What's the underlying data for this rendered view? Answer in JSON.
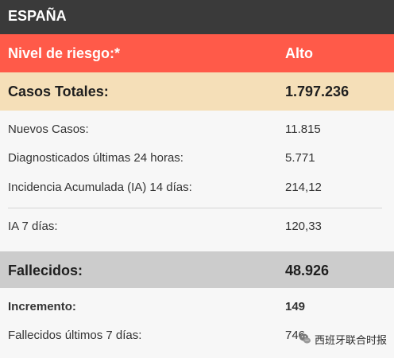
{
  "header": {
    "title": "ESPAÑA"
  },
  "risk": {
    "label": "Nivel de riesgo:*",
    "value": "Alto"
  },
  "total_cases": {
    "label": "Casos Totales:",
    "value": "1.797.236"
  },
  "cases_details": [
    {
      "label": "Nuevos Casos:",
      "value": "11.815"
    },
    {
      "label": "Diagnosticados últimas 24 horas:",
      "value": "5.771"
    },
    {
      "label": "Incidencia Acumulada (IA) 14 días:",
      "value": "214,12"
    },
    {
      "label": "IA 7 días:",
      "value": "120,33"
    }
  ],
  "deaths": {
    "label": "Fallecidos:",
    "value": "48.926"
  },
  "deaths_details": [
    {
      "label": "Incremento:",
      "value": "149"
    },
    {
      "label": "Fallecidos últimos 7 días:",
      "value": "746"
    }
  ],
  "watermark": {
    "text": "西班牙联合时报",
    "icon": "wechat-icon"
  }
}
